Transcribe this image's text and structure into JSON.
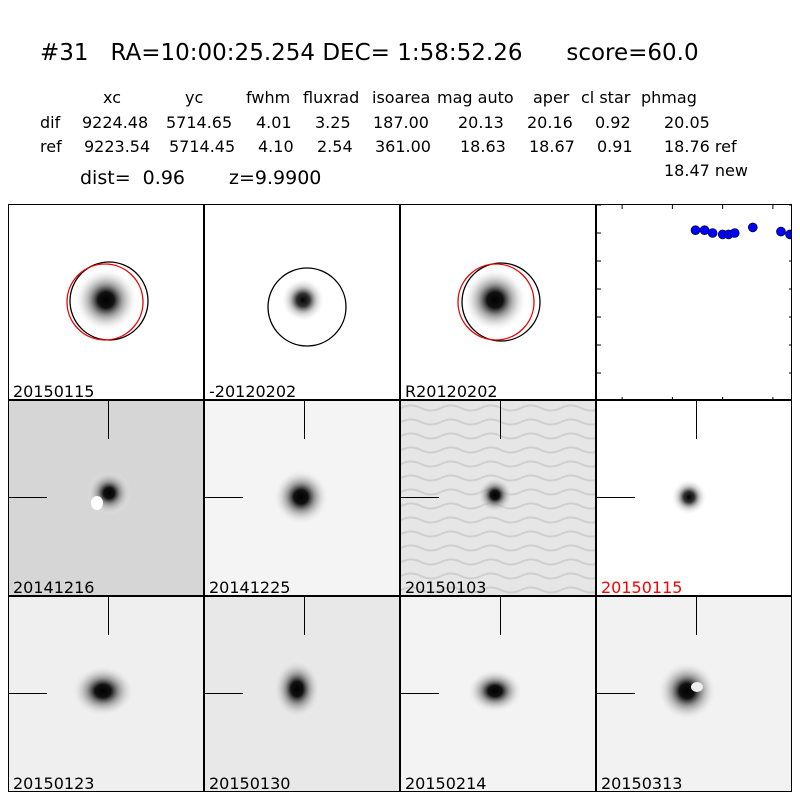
{
  "title": "#31   RA=10:00:25.254 DEC= 1:58:52.26      score=60.0",
  "table": {
    "headers": [
      "xc",
      "yc",
      "fwhm",
      "fluxrad",
      "isoarea",
      "mag auto",
      "aper",
      "cl star",
      "phmag"
    ],
    "rows": [
      {
        "label": "dif",
        "values": [
          "9224.48",
          "5714.65",
          "4.01",
          "3.25",
          "187.00",
          "20.13",
          "20.16",
          "0.92",
          "20.05"
        ]
      },
      {
        "label": "ref",
        "values": [
          "9223.54",
          "5714.45",
          "4.10",
          "2.54",
          "361.00",
          "18.63",
          "18.67",
          "0.91",
          "18.76 ref"
        ]
      }
    ],
    "extra_phmag": "18.47 new"
  },
  "dist_text": "dist=  0.96",
  "z_text": "z=9.9900",
  "top_panels": [
    {
      "label": "20150115",
      "circles": [
        "black",
        "red"
      ]
    },
    {
      "label": "-20120202",
      "circles": [
        "black"
      ]
    },
    {
      "label": "R20120202",
      "circles": [
        "black",
        "red"
      ]
    }
  ],
  "stamps": [
    {
      "label": "20141216",
      "label_color": "#000000",
      "bg": "#d6d6d6"
    },
    {
      "label": "20141225",
      "label_color": "#000000",
      "bg": "#f4f4f4"
    },
    {
      "label": "20150103",
      "label_color": "#000000",
      "bg": "#e6e6e6"
    },
    {
      "label": "20150115",
      "label_color": "#ff0000",
      "bg": "#ffffff"
    },
    {
      "label": "20150123",
      "label_color": "#000000",
      "bg": "#efefef"
    },
    {
      "label": "20150130",
      "label_color": "#000000",
      "bg": "#e8e8e8"
    },
    {
      "label": "20150214",
      "label_color": "#000000",
      "bg": "#f3f3f3"
    },
    {
      "label": "20150313",
      "label_color": "#000000",
      "bg": "#f2f2f2"
    }
  ],
  "chart_data": {
    "type": "scatter",
    "x": [
      -27,
      -18,
      -10,
      0,
      6,
      12,
      30,
      58,
      67
    ],
    "y": [
      19.9,
      19.9,
      20.0,
      20.05,
      20.05,
      20.0,
      19.8,
      19.95,
      20.05
    ],
    "xlim": [
      -125,
      70
    ],
    "ylim": [
      26,
      19
    ],
    "xticks": [
      -100,
      -50,
      0,
      50
    ],
    "yticks": [
      19,
      20,
      21,
      22,
      23,
      24,
      25,
      26
    ],
    "marker_color": "#0000ff"
  }
}
